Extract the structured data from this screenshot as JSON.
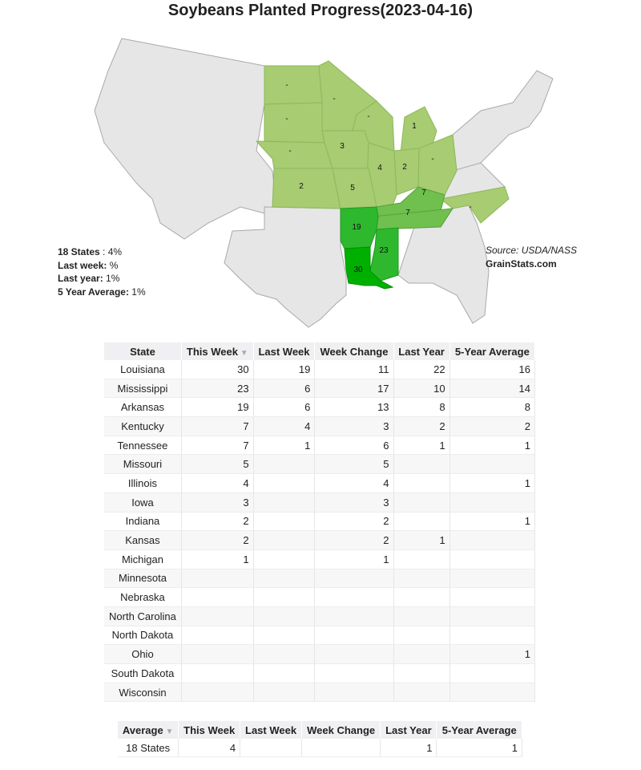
{
  "title": "Soybeans Planted Progress(2023-04-16)",
  "legend": {
    "states_label": "18 States",
    "states_value": " : 4%",
    "last_week_label": "Last week:",
    "last_week_value": " %",
    "last_year_label": "Last year:",
    "last_year_value": " 1%",
    "five_year_label": "5 Year Average:",
    "five_year_value": " 1%"
  },
  "source": {
    "line1": "Source: USDA/NASS",
    "line2": "GrainStats.com"
  },
  "map": {
    "colors": {
      "none": "#e6e6e6",
      "light": "#a7cc72",
      "mid": "#6fc04e",
      "high": "#2db82d",
      "top": "#00b000",
      "border": "#a9a9a9"
    },
    "labels": {
      "nd": "-",
      "mn": "-",
      "wi": "-",
      "sd": "-",
      "ne": "-",
      "mi": "1",
      "ia": "3",
      "il": "4",
      "in": "2",
      "oh": "-",
      "ks": "2",
      "mo": "5",
      "ky": "7",
      "tn": "7",
      "nc": "-",
      "ar": "19",
      "ms": "23",
      "la": "30"
    }
  },
  "main_table": {
    "headers": [
      "State",
      "This Week",
      "Last Week",
      "Week Change",
      "Last Year",
      "5-Year Average"
    ],
    "sort_icon": "▼",
    "rows": [
      [
        "Louisiana",
        "30",
        "19",
        "11",
        "22",
        "16"
      ],
      [
        "Mississippi",
        "23",
        "6",
        "17",
        "10",
        "14"
      ],
      [
        "Arkansas",
        "19",
        "6",
        "13",
        "8",
        "8"
      ],
      [
        "Kentucky",
        "7",
        "4",
        "3",
        "2",
        "2"
      ],
      [
        "Tennessee",
        "7",
        "1",
        "6",
        "1",
        "1"
      ],
      [
        "Missouri",
        "5",
        "",
        "5",
        "",
        ""
      ],
      [
        "Illinois",
        "4",
        "",
        "4",
        "",
        "1"
      ],
      [
        "Iowa",
        "3",
        "",
        "3",
        "",
        ""
      ],
      [
        "Indiana",
        "2",
        "",
        "2",
        "",
        "1"
      ],
      [
        "Kansas",
        "2",
        "",
        "2",
        "1",
        ""
      ],
      [
        "Michigan",
        "1",
        "",
        "1",
        "",
        ""
      ],
      [
        "Minnesota",
        "",
        "",
        "",
        "",
        ""
      ],
      [
        "Nebraska",
        "",
        "",
        "",
        "",
        ""
      ],
      [
        "North Carolina",
        "",
        "",
        "",
        "",
        ""
      ],
      [
        "North Dakota",
        "",
        "",
        "",
        "",
        ""
      ],
      [
        "Ohio",
        "",
        "",
        "",
        "",
        "1"
      ],
      [
        "South Dakota",
        "",
        "",
        "",
        "",
        ""
      ],
      [
        "Wisconsin",
        "",
        "",
        "",
        "",
        ""
      ]
    ]
  },
  "avg_table": {
    "headers": [
      "Average",
      "This Week",
      "Last Week",
      "Week Change",
      "Last Year",
      "5-Year Average"
    ],
    "sort_icon": "▼",
    "rows": [
      [
        "18 States",
        "4",
        "",
        "",
        "1",
        "1"
      ]
    ]
  }
}
